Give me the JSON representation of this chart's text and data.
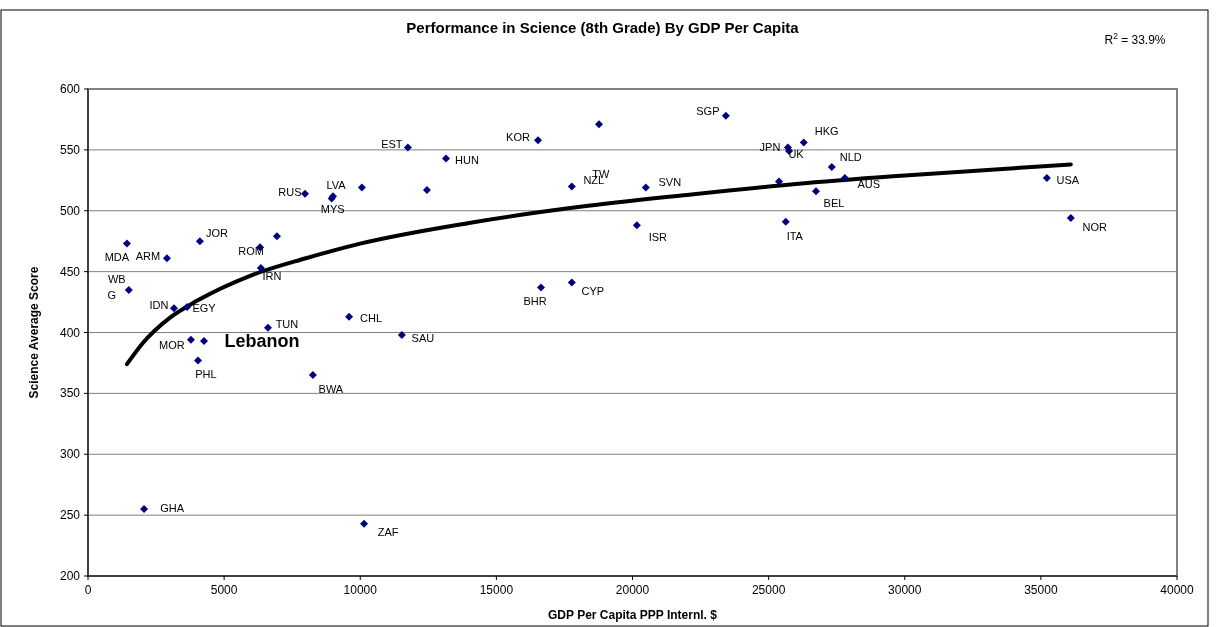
{
  "chart_data": {
    "type": "scatter",
    "title": "Performance in Science (8th Grade) By GDP Per Capita",
    "xlabel": "GDP Per Capita PPP Internl. $",
    "ylabel": "Science Average Score",
    "xlim": [
      0,
      40000
    ],
    "xticks": [
      0,
      5000,
      10000,
      15000,
      20000,
      25000,
      30000,
      35000,
      40000
    ],
    "ylim": [
      200,
      600
    ],
    "yticks": [
      200,
      250,
      300,
      350,
      400,
      450,
      500,
      550,
      600
    ],
    "grid": "y",
    "marker": "diamond",
    "series": [
      {
        "color": "#000080",
        "x": [
          1430,
          2900,
          4110,
          6320,
          6940,
          6350,
          1500,
          3160,
          3640,
          3780,
          4260,
          4040,
          6610,
          8260,
          9590,
          11530,
          7970,
          9000,
          8950,
          10060,
          12450,
          11750,
          13150,
          16530,
          18770,
          17770,
          20490,
          20160,
          16640,
          17770,
          23430,
          25710,
          25750,
          26290,
          25380,
          25630,
          26740,
          27320,
          27800,
          35220,
          36100,
          2060,
          10140
        ],
        "values": [
          473,
          461,
          475,
          470,
          479,
          453,
          435,
          420,
          421,
          394,
          393,
          377,
          404,
          365,
          413,
          398,
          514,
          512,
          510,
          519,
          517,
          552,
          543,
          558,
          571,
          520,
          519,
          488,
          437,
          441,
          578,
          552,
          549,
          556,
          524,
          491,
          516,
          536,
          527,
          527,
          494,
          255,
          243
        ]
      },
      {
        "type": "line",
        "marker": "none",
        "color": "#000000",
        "x": [
          1430,
          2000,
          3000,
          4000,
          6000,
          8000,
          10000,
          14000,
          18000,
          22000,
          26000,
          30000,
          36100
        ],
        "values": [
          374,
          391,
          412,
          426,
          447,
          461,
          473,
          490,
          503,
          513,
          522,
          529,
          538
        ]
      }
    ],
    "annotations": [
      "R$^{2}$ = 33.9%",
      {
        "text": "MDA",
        "x": 1430,
        "y": 473
      },
      {
        "text": "ARM",
        "x": 2900,
        "y": 461
      },
      {
        "text": "JOR",
        "x": 4110,
        "y": 475
      },
      {
        "text": "ROM",
        "x": 6320,
        "y": 470
      },
      {
        "text": "IRN",
        "x": 6350,
        "y": 453
      },
      {
        "text": "WB",
        "x": 1500,
        "y": 435
      },
      {
        "text": "G",
        "x": 1500,
        "y": 435
      },
      {
        "text": "IDN",
        "x": 3160,
        "y": 420
      },
      {
        "text": "EGY",
        "x": 3640,
        "y": 421
      },
      {
        "text": "MOR",
        "x": 3780,
        "y": 394
      },
      {
        "text": "Lebanon",
        "x": 4260,
        "y": 393
      },
      {
        "text": "PHL",
        "x": 4040,
        "y": 377
      },
      {
        "text": "TUN",
        "x": 6610,
        "y": 404
      },
      {
        "text": "BWA",
        "x": 8260,
        "y": 365
      },
      {
        "text": "CHL",
        "x": 9590,
        "y": 413
      },
      {
        "text": "SAU",
        "x": 11530,
        "y": 398
      },
      {
        "text": "RUS",
        "x": 7970,
        "y": 514
      },
      {
        "text": "LVA",
        "x": 9000,
        "y": 512
      },
      {
        "text": "MYS",
        "x": 8950,
        "y": 510
      },
      {
        "text": "EST",
        "x": 11750,
        "y": 552
      },
      {
        "text": "HUN",
        "x": 13150,
        "y": 543
      },
      {
        "text": "KOR",
        "x": 16530,
        "y": 558
      },
      {
        "text": "SGP",
        "x": 23430,
        "y": 578
      },
      {
        "text": "NZL",
        "x": 17770,
        "y": 520
      },
      {
        "text": "TW",
        "x": 17770,
        "y": 520
      },
      {
        "text": "SVN",
        "x": 20490,
        "y": 519
      },
      {
        "text": "ISR",
        "x": 20160,
        "y": 488
      },
      {
        "text": "BHR",
        "x": 16640,
        "y": 437
      },
      {
        "text": "CYP",
        "x": 17770,
        "y": 441
      },
      {
        "text": "JPN",
        "x": 25710,
        "y": 552
      },
      {
        "text": "UK",
        "x": 25750,
        "y": 549
      },
      {
        "text": "HKG",
        "x": 26290,
        "y": 556
      },
      {
        "text": "NLD",
        "x": 27320,
        "y": 536
      },
      {
        "text": "AUS",
        "x": 27800,
        "y": 527
      },
      {
        "text": "BEL",
        "x": 26740,
        "y": 516
      },
      {
        "text": "ITA",
        "x": 25630,
        "y": 491
      },
      {
        "text": "USA",
        "x": 35220,
        "y": 527
      },
      {
        "text": "NOR",
        "x": 36100,
        "y": 494
      },
      {
        "text": "GHA",
        "x": 2060,
        "y": 255
      },
      {
        "text": "ZAF",
        "x": 10140,
        "y": 243
      }
    ]
  }
}
